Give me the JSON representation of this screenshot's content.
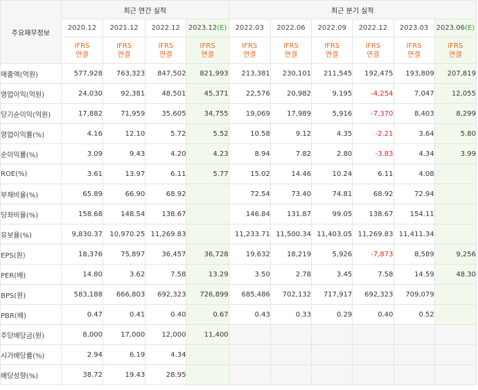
{
  "header": {
    "corner_label": "주요재무정보",
    "annual_title": "최근 연간 실적",
    "quarterly_title": "최근 분기 실적",
    "estimate_mark": "(E)",
    "periods": [
      {
        "label": "2020.12",
        "estimate": false
      },
      {
        "label": "2021.12",
        "estimate": false
      },
      {
        "label": "2022.12",
        "estimate": false
      },
      {
        "label": "2023.12",
        "estimate": true
      },
      {
        "label": "2022.03",
        "estimate": false
      },
      {
        "label": "2022.06",
        "estimate": false
      },
      {
        "label": "2022.09",
        "estimate": false
      },
      {
        "label": "2022.12",
        "estimate": false
      },
      {
        "label": "2023.03",
        "estimate": false
      },
      {
        "label": "2023.06",
        "estimate": true
      }
    ],
    "ifrs_line1": "IFRS",
    "ifrs_line2": "연결"
  },
  "rows": [
    {
      "label": "매출액(억원)",
      "group_start": true,
      "values": [
        "577,928",
        "763,323",
        "847,502",
        "821,993",
        "213,381",
        "230,101",
        "211,545",
        "192,475",
        "193,809",
        "207,819"
      ]
    },
    {
      "label": "영업이익(억원)",
      "group_start": false,
      "values": [
        "24,030",
        "92,381",
        "48,501",
        "45,371",
        "22,576",
        "20,982",
        "9,195",
        "-4,254",
        "7,047",
        "12,055"
      ]
    },
    {
      "label": "당기순이익(억원)",
      "group_start": false,
      "values": [
        "17,882",
        "71,959",
        "35,605",
        "34,755",
        "19,069",
        "17,989",
        "5,916",
        "-7,370",
        "8,403",
        "8,299"
      ]
    },
    {
      "label": "영업이익률(%)",
      "group_start": true,
      "values": [
        "4.16",
        "12.10",
        "5.72",
        "5.52",
        "10.58",
        "9.12",
        "4.35",
        "-2.21",
        "3.64",
        "5.80"
      ]
    },
    {
      "label": "순이익률(%)",
      "group_start": false,
      "values": [
        "3.09",
        "9.43",
        "4.20",
        "4.23",
        "8.94",
        "7.82",
        "2.80",
        "-3.83",
        "4.34",
        "3.99"
      ]
    },
    {
      "label": "ROE(%)",
      "group_start": false,
      "values": [
        "3.61",
        "13.97",
        "6.11",
        "5.77",
        "15.02",
        "14.46",
        "10.24",
        "6.11",
        "4.08",
        ""
      ]
    },
    {
      "label": "부채비율(%)",
      "group_start": true,
      "values": [
        "65.89",
        "66.90",
        "68.92",
        "",
        "72.54",
        "73.40",
        "74.81",
        "68.92",
        "72.94",
        ""
      ]
    },
    {
      "label": "당좌비율(%)",
      "group_start": false,
      "values": [
        "158.68",
        "148.54",
        "138.67",
        "",
        "146.84",
        "131.87",
        "99.05",
        "138.67",
        "154.11",
        ""
      ]
    },
    {
      "label": "유보율(%)",
      "group_start": false,
      "values": [
        "9,830.37",
        "10,970.25",
        "11,269.83",
        "",
        "11,233.71",
        "11,500.34",
        "11,403.05",
        "11,269.83",
        "11,411.34",
        ""
      ]
    },
    {
      "label": "EPS(원)",
      "group_start": true,
      "values": [
        "18,376",
        "75,897",
        "36,457",
        "36,728",
        "19,632",
        "18,219",
        "5,926",
        "-7,873",
        "8,589",
        "9,256"
      ]
    },
    {
      "label": "PER(배)",
      "group_start": false,
      "values": [
        "14.80",
        "3.62",
        "7.58",
        "13.29",
        "3.50",
        "2.78",
        "3.45",
        "7.58",
        "14.59",
        "48.30"
      ]
    },
    {
      "label": "BPS(원)",
      "group_start": false,
      "values": [
        "583,188",
        "666,803",
        "692,323",
        "726,899",
        "685,486",
        "702,132",
        "717,917",
        "692,323",
        "709,079",
        ""
      ]
    },
    {
      "label": "PBR(배)",
      "group_start": false,
      "values": [
        "0.47",
        "0.41",
        "0.40",
        "0.67",
        "0.43",
        "0.33",
        "0.29",
        "0.40",
        "0.52",
        ""
      ]
    },
    {
      "label": "주당배당금(원)",
      "group_start": true,
      "dividend": true,
      "values": [
        "8,000",
        "17,000",
        "12,000",
        "11,400",
        "",
        "",
        "",
        "",
        "",
        ""
      ]
    },
    {
      "label": "시가배당률(%)",
      "group_start": false,
      "dividend": true,
      "values": [
        "2.94",
        "6.19",
        "4.34",
        "",
        "",
        "",
        "",
        "",
        "",
        ""
      ]
    },
    {
      "label": "배당성향(%)",
      "group_start": false,
      "dividend": true,
      "values": [
        "38.72",
        "19.43",
        "28.95",
        "",
        "",
        "",
        "",
        "",
        "",
        ""
      ]
    }
  ]
}
